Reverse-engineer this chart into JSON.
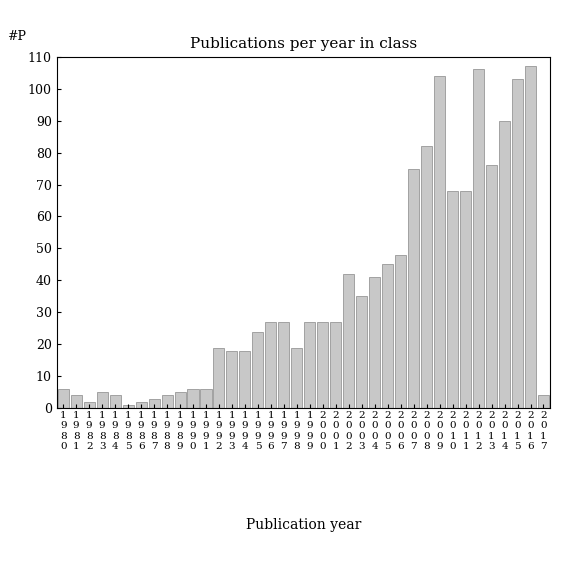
{
  "title": "Publications per year in class",
  "xlabel": "Publication year",
  "ylabel": "#P",
  "ylim": [
    0,
    110
  ],
  "yticks": [
    0,
    10,
    20,
    30,
    40,
    50,
    60,
    70,
    80,
    90,
    100,
    110
  ],
  "bar_color": "#c8c8c8",
  "bar_edgecolor": "#888888",
  "years": [
    "1980",
    "1981",
    "1982",
    "1983",
    "1984",
    "1985",
    "1986",
    "1987",
    "1988",
    "1989",
    "1990",
    "1991",
    "1992",
    "1993",
    "1994",
    "1995",
    "1996",
    "1997",
    "1998",
    "1999",
    "2000",
    "2001",
    "2002",
    "2003",
    "2004",
    "2005",
    "2006",
    "2007",
    "2008",
    "2009",
    "2010",
    "2011",
    "2012",
    "2013",
    "2014",
    "2015",
    "2016",
    "2017"
  ],
  "values": [
    6,
    4,
    2,
    5,
    4,
    1,
    2,
    3,
    4,
    5,
    6,
    6,
    19,
    18,
    18,
    24,
    27,
    27,
    19,
    27,
    27,
    27,
    42,
    35,
    41,
    45,
    48,
    75,
    82,
    104,
    68,
    68,
    106,
    76,
    90,
    103,
    107,
    4
  ],
  "title_fontsize": 11,
  "axis_fontsize": 9,
  "xlabel_fontsize": 10,
  "tick_fontsize": 7.5
}
